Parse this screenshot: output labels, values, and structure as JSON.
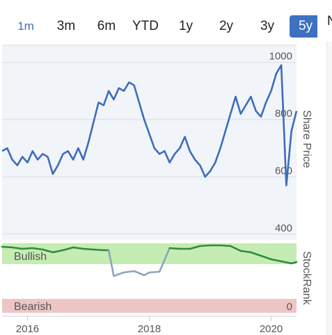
{
  "range_selector": {
    "options": [
      "1m",
      "3m",
      "6m",
      "YTD",
      "1y",
      "2y",
      "3y",
      "5y"
    ],
    "selected": "5y"
  },
  "panel_cut_label": "N",
  "chart_data": [
    {
      "type": "line",
      "ylabel": "Share Price",
      "ylim": [
        380,
        1060
      ],
      "yticks": [
        400,
        600,
        800,
        1000
      ],
      "xlim": [
        "2015-08",
        "2020-06"
      ],
      "xticks": [
        "2016",
        "2018",
        "2020"
      ],
      "grid": true,
      "color": "#3d6cb9",
      "x": [
        "2015-08",
        "2015-09",
        "2015-10",
        "2015-11",
        "2015-12",
        "2016-01",
        "2016-02",
        "2016-03",
        "2016-04",
        "2016-05",
        "2016-06",
        "2016-07",
        "2016-08",
        "2016-09",
        "2016-10",
        "2016-11",
        "2016-12",
        "2017-01",
        "2017-02",
        "2017-03",
        "2017-04",
        "2017-05",
        "2017-06",
        "2017-07",
        "2017-08",
        "2017-09",
        "2017-10",
        "2017-11",
        "2017-12",
        "2018-01",
        "2018-02",
        "2018-03",
        "2018-04",
        "2018-05",
        "2018-06",
        "2018-07",
        "2018-08",
        "2018-09",
        "2018-10",
        "2018-11",
        "2018-12",
        "2019-01",
        "2019-02",
        "2019-03",
        "2019-04",
        "2019-05",
        "2019-06",
        "2019-07",
        "2019-08",
        "2019-09",
        "2019-10",
        "2019-11",
        "2019-12",
        "2020-01",
        "2020-02",
        "2020-03",
        "2020-04",
        "2020-05",
        "2020-06"
      ],
      "values": [
        690,
        700,
        660,
        640,
        670,
        650,
        690,
        660,
        680,
        670,
        610,
        640,
        680,
        690,
        660,
        700,
        660,
        720,
        790,
        860,
        850,
        900,
        870,
        910,
        900,
        930,
        920,
        860,
        800,
        750,
        700,
        680,
        690,
        650,
        680,
        700,
        740,
        690,
        660,
        640,
        600,
        620,
        650,
        700,
        760,
        820,
        880,
        820,
        850,
        880,
        830,
        810,
        860,
        900,
        960,
        990,
        570,
        760,
        830
      ]
    },
    {
      "type": "line",
      "ylabel": "StockRank",
      "ylim": [
        0,
        100
      ],
      "bands": [
        {
          "label": "Bullish",
          "from": 70,
          "to": 100,
          "color": "#c5ecb2"
        },
        {
          "label": "Bearish",
          "from": 0,
          "to": 20,
          "color": "#eec5c5"
        }
      ],
      "zero_label": "0",
      "threshold": 70,
      "color_above": "#2e8b3c",
      "color_below": "#8ea3bd",
      "x": [
        "2015-08",
        "2015-10",
        "2015-12",
        "2016-02",
        "2016-04",
        "2016-06",
        "2016-08",
        "2016-10",
        "2016-12",
        "2017-02",
        "2017-04",
        "2017-05",
        "2017-06",
        "2017-08",
        "2017-10",
        "2017-12",
        "2018-01",
        "2018-03",
        "2018-05",
        "2018-07",
        "2018-09",
        "2018-11",
        "2019-01",
        "2019-03",
        "2019-05",
        "2019-07",
        "2019-09",
        "2019-11",
        "2020-01",
        "2020-03",
        "2020-05",
        "2020-06"
      ],
      "values": [
        95,
        94,
        92,
        93,
        91,
        87,
        90,
        94,
        92,
        91,
        90,
        90,
        53,
        58,
        60,
        54,
        58,
        59,
        93,
        92,
        92,
        96,
        97,
        97,
        96,
        89,
        87,
        82,
        77,
        74,
        71,
        73
      ]
    }
  ]
}
